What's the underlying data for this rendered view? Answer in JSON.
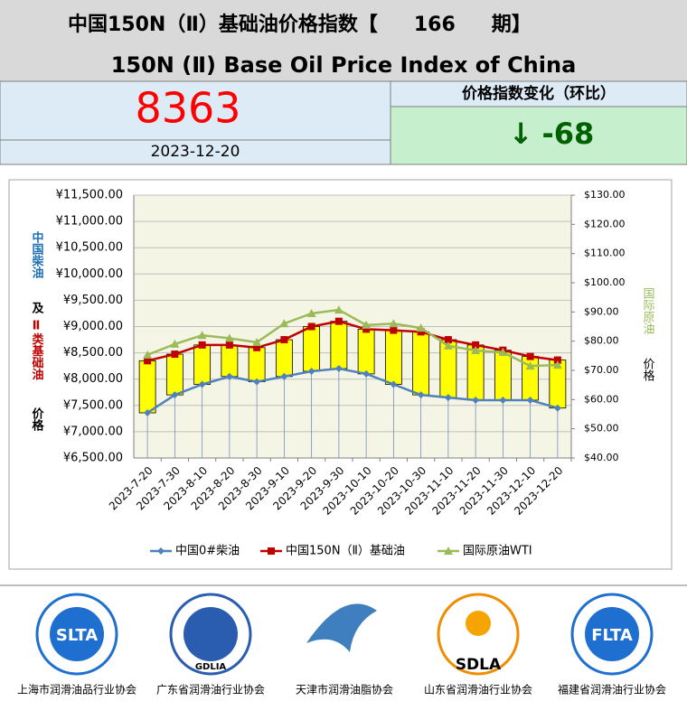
{
  "header": {
    "title_cn_start": "中国150N（Ⅱ）基础油价格指数【",
    "issue": "166",
    "title_cn_end": "期】",
    "title_en": "150N (Ⅱ) Base Oil Price Index of China"
  },
  "index": {
    "value": 8363,
    "date": "2023-12-20"
  },
  "change": {
    "label": "价格指数变化（环比）",
    "arrow": "↓",
    "value": -68
  },
  "chart_data": {
    "type": "line",
    "y_label_left": [
      {
        "text": "中国柴油",
        "color": "#1f6fb5"
      },
      {
        "text": "及",
        "color": "#000000"
      },
      {
        "text": "Ⅱ类基础油",
        "color": "#c00000"
      },
      {
        "text": "价格",
        "color": "#000000"
      }
    ],
    "y_label_right": [
      {
        "text": "国际原油",
        "color": "#9bbb59"
      },
      {
        "text": "价格",
        "color": "#000000"
      }
    ],
    "categories": [
      "2023-7-20",
      "2023-7-30",
      "2023-8-10",
      "2023-8-20",
      "2023-8-30",
      "2023-9-10",
      "2023-9-20",
      "2023-9-30",
      "2023-10-10",
      "2023-10-20",
      "2023-10-30",
      "2023-11-10",
      "2023-11-20",
      "2023-11-30",
      "2023-12-10",
      "2023-12-20"
    ],
    "series": [
      {
        "name": "中国0#柴油",
        "color": "#4f81bd",
        "marker": "diamond",
        "values": [
          7359,
          7700,
          7900,
          8050,
          7950,
          8050,
          8150,
          8200,
          8100,
          7900,
          7700,
          7650,
          7600,
          7600,
          7600,
          7450
        ]
      },
      {
        "name": "中国150N（Ⅱ）基础油",
        "color": "#c00000",
        "marker": "square",
        "values": [
          8350,
          8475,
          8650,
          8650,
          8600,
          8750,
          9000,
          9100,
          8950,
          8930,
          8900,
          8750,
          8650,
          8550,
          8431,
          8363
        ]
      },
      {
        "name": "国际原油WTI",
        "color": "#9bbb59",
        "marker": "triangle",
        "axis": "y2",
        "values": [
          75.3,
          79,
          82,
          81,
          79.6,
          86,
          89.5,
          90.7,
          85.5,
          86,
          84.5,
          78.4,
          76.8,
          76.2,
          71.5,
          71.8
        ]
      }
    ],
    "updown_bar_color": "#ffff00",
    "ylim": [
      6500,
      11500
    ],
    "yticks": [
      {
        "value": 6500,
        "label": "¥6,500.00"
      },
      {
        "value": 7000,
        "label": "¥7,000.00"
      },
      {
        "value": 7500,
        "label": "¥7,500.00"
      },
      {
        "value": 8000,
        "label": "¥8,000.00"
      },
      {
        "value": 8500,
        "label": "¥8,500.00"
      },
      {
        "value": 9000,
        "label": "¥9,000.00"
      },
      {
        "value": 9500,
        "label": "¥9,500.00"
      },
      {
        "value": 10000,
        "label": "¥10,000.00"
      },
      {
        "value": 10500,
        "label": "¥10,500.00"
      },
      {
        "value": 11000,
        "label": "¥11,000.00"
      },
      {
        "value": 11500,
        "label": "¥11,500.00"
      }
    ],
    "y2lim": [
      40,
      130
    ],
    "y2ticks": [
      {
        "value": 40,
        "label": "$40.00"
      },
      {
        "value": 50,
        "label": "$50.00"
      },
      {
        "value": 60,
        "label": "$60.00"
      },
      {
        "value": 70,
        "label": "$70.00"
      },
      {
        "value": 80,
        "label": "$80.00"
      },
      {
        "value": 90,
        "label": "$90.00"
      },
      {
        "value": 100,
        "label": "$100.00"
      },
      {
        "value": 110,
        "label": "$110.00"
      },
      {
        "value": 120,
        "label": "$120.00"
      },
      {
        "value": 130,
        "label": "$130.00"
      }
    ],
    "grid": true,
    "legend": "bottom"
  },
  "logos": [
    {
      "abbr": "SLTA",
      "name": "上海市润滑油品行业协会"
    },
    {
      "abbr": "GDLIA",
      "name": "广东省润滑油行业协会"
    },
    {
      "abbr": "",
      "name": "天津市润滑油脂协会"
    },
    {
      "abbr": "SDLA",
      "name": "山东省润滑油行业协会"
    },
    {
      "abbr": "FLTA",
      "name": "福建省润滑油行业协会"
    }
  ]
}
